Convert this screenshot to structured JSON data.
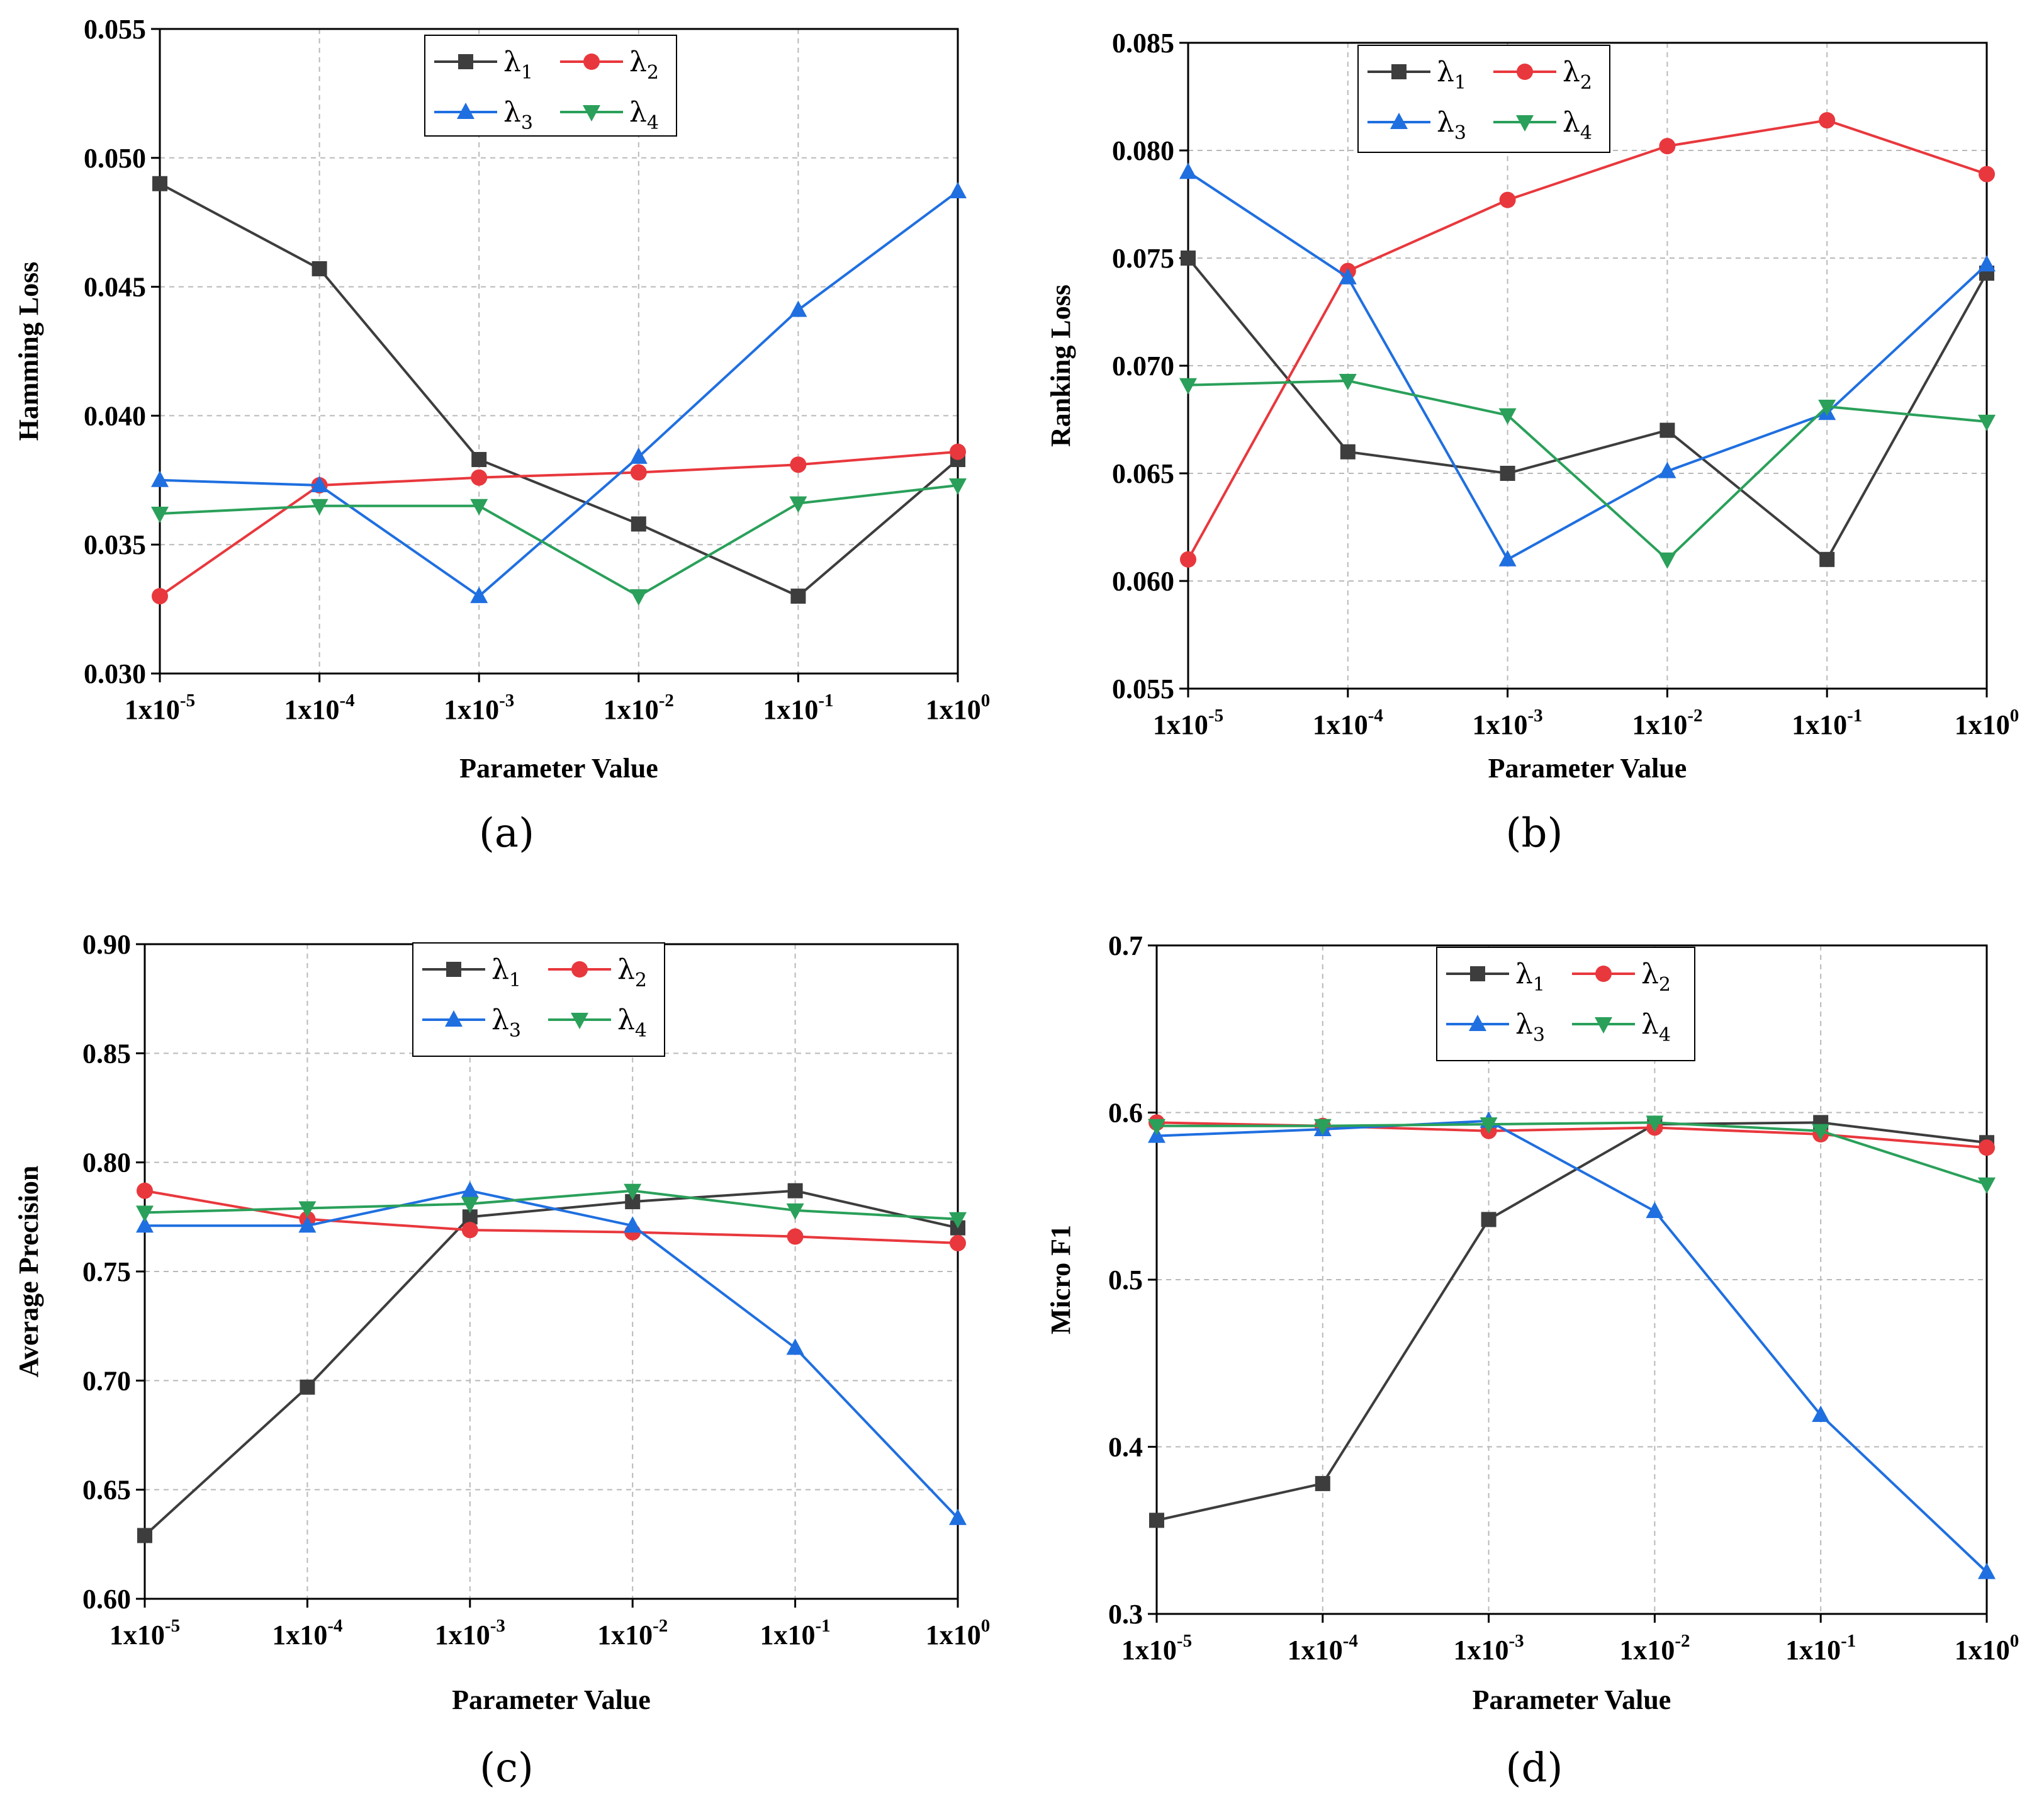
{
  "colors": {
    "lambda1": "#3d3d3d",
    "lambda2": "#e8383d",
    "lambda3": "#1f6fe0",
    "lambda4": "#2aa05a"
  },
  "legend": [
    {
      "symbol": "λ",
      "subscript": "1",
      "color_key": "lambda1",
      "marker": "square"
    },
    {
      "symbol": "λ",
      "subscript": "2",
      "color_key": "lambda2",
      "marker": "circle"
    },
    {
      "symbol": "λ",
      "subscript": "3",
      "color_key": "lambda3",
      "marker": "triangle-up"
    },
    {
      "symbol": "λ",
      "subscript": "4",
      "color_key": "lambda4",
      "marker": "triangle-down"
    }
  ],
  "x_ticks": [
    {
      "base": "1x10",
      "exp": "-5"
    },
    {
      "base": "1x10",
      "exp": "-4"
    },
    {
      "base": "1x10",
      "exp": "-3"
    },
    {
      "base": "1x10",
      "exp": "-2"
    },
    {
      "base": "1x10",
      "exp": "-1"
    },
    {
      "base": "1x10",
      "exp": "0"
    }
  ],
  "chart_data": [
    {
      "type": "line",
      "caption": "(a)",
      "xlabel": "Parameter Value",
      "ylabel": "Hamming Loss",
      "ylim": [
        0.03,
        0.055
      ],
      "yticks": [
        "0.030",
        "0.035",
        "0.040",
        "0.045",
        "0.050",
        "0.055"
      ],
      "grid": true,
      "legend_position": "top-center",
      "series": [
        {
          "name": "λ1",
          "values": [
            0.049,
            0.0457,
            0.0383,
            0.0358,
            0.033,
            0.0383
          ]
        },
        {
          "name": "λ2",
          "values": [
            0.033,
            0.0373,
            0.0376,
            0.0378,
            0.0381,
            0.0386
          ]
        },
        {
          "name": "λ3",
          "values": [
            0.0375,
            0.0373,
            0.033,
            0.0384,
            0.0441,
            0.0487
          ]
        },
        {
          "name": "λ4",
          "values": [
            0.0362,
            0.0365,
            0.0365,
            0.033,
            0.0366,
            0.0373
          ]
        }
      ]
    },
    {
      "type": "line",
      "caption": "(b)",
      "xlabel": "Parameter Value",
      "ylabel": "Ranking Loss",
      "ylim": [
        0.055,
        0.085
      ],
      "yticks": [
        "0.055",
        "0.060",
        "0.065",
        "0.070",
        "0.075",
        "0.080",
        "0.085"
      ],
      "grid": true,
      "legend_position": "top-center",
      "series": [
        {
          "name": "λ1",
          "values": [
            0.075,
            0.066,
            0.065,
            0.067,
            0.061,
            0.0743
          ]
        },
        {
          "name": "λ2",
          "values": [
            0.061,
            0.0744,
            0.0777,
            0.0802,
            0.0814,
            0.0789
          ]
        },
        {
          "name": "λ3",
          "values": [
            0.079,
            0.0741,
            0.061,
            0.0651,
            0.0678,
            0.0747
          ]
        },
        {
          "name": "λ4",
          "values": [
            0.0691,
            0.0693,
            0.0677,
            0.061,
            0.0681,
            0.0674
          ]
        }
      ]
    },
    {
      "type": "line",
      "caption": "(c)",
      "xlabel": "Parameter Value",
      "ylabel": "Average Precision",
      "ylim": [
        0.6,
        0.9
      ],
      "yticks": [
        "0.60",
        "0.65",
        "0.70",
        "0.75",
        "0.80",
        "0.85",
        "0.90"
      ],
      "grid": true,
      "legend_position": "top-center",
      "series": [
        {
          "name": "λ1",
          "values": [
            0.629,
            0.697,
            0.775,
            0.782,
            0.787,
            0.77
          ]
        },
        {
          "name": "λ2",
          "values": [
            0.787,
            0.774,
            0.769,
            0.768,
            0.766,
            0.763
          ]
        },
        {
          "name": "λ3",
          "values": [
            0.771,
            0.771,
            0.787,
            0.771,
            0.715,
            0.637
          ]
        },
        {
          "name": "λ4",
          "values": [
            0.777,
            0.779,
            0.781,
            0.787,
            0.778,
            0.774
          ]
        }
      ]
    },
    {
      "type": "line",
      "caption": "(d)",
      "xlabel": "Parameter Value",
      "ylabel": "Micro F1",
      "ylim": [
        0.3,
        0.7
      ],
      "yticks": [
        "0.3",
        "0.4",
        "0.5",
        "0.6",
        "0.7"
      ],
      "grid": true,
      "legend_position": "top-center",
      "series": [
        {
          "name": "λ1",
          "values": [
            0.356,
            0.378,
            0.536,
            0.593,
            0.594,
            0.582
          ]
        },
        {
          "name": "λ2",
          "values": [
            0.594,
            0.592,
            0.589,
            0.591,
            0.587,
            0.579
          ]
        },
        {
          "name": "λ3",
          "values": [
            0.586,
            0.59,
            0.595,
            0.541,
            0.419,
            0.325
          ]
        },
        {
          "name": "λ4",
          "values": [
            0.592,
            0.592,
            0.593,
            0.594,
            0.589,
            0.557
          ]
        }
      ]
    }
  ]
}
